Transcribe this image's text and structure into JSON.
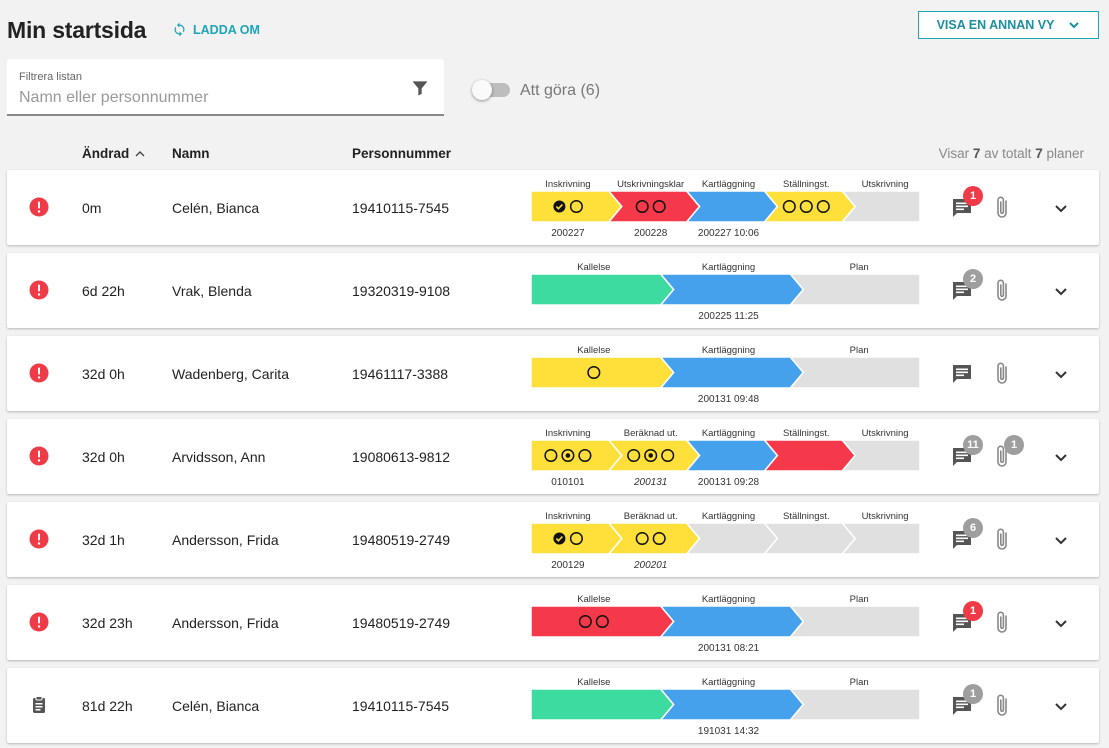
{
  "header": {
    "title": "Min startsida",
    "reload_label": "LADDA OM",
    "view_button_label": "VISA EN ANNAN VY"
  },
  "filter": {
    "label": "Filtrera listan",
    "placeholder": "Namn eller personnummer",
    "value": ""
  },
  "todo_toggle": {
    "label": "Att göra (6)",
    "checked": false
  },
  "table": {
    "columns": [
      "Ändrad",
      "Namn",
      "Personnummer"
    ],
    "sort_indicator": "^",
    "count_prefix": "Visar",
    "count_shown": "7",
    "count_mid": "av totalt",
    "count_total": "7",
    "count_suffix": "planer"
  },
  "colors": {
    "yellow": "#ffe03b",
    "red": "#f5394a",
    "blue": "#45a1ec",
    "green": "#3ddba0",
    "grey": "#e0e0e0",
    "teal": "#1aa6b7",
    "alert": "#ef3b47"
  },
  "rows": [
    {
      "status": "alert-icon",
      "changed": "0m",
      "name": "Celén, Bianca",
      "pnr": "19410115-7545",
      "steps": [
        {
          "label": "Inskrivning",
          "color": "yellow",
          "date": "200227",
          "italic": false,
          "circles": [
            "check",
            "empty"
          ]
        },
        {
          "label": "Utskrivningsklar",
          "color": "red",
          "date": "200228",
          "italic": false,
          "circles": [
            "empty",
            "empty"
          ]
        },
        {
          "label": "Kartläggning",
          "color": "blue",
          "date": "200227 10:06",
          "italic": false,
          "circles": []
        },
        {
          "label": "Ställningst.",
          "color": "yellow",
          "date": "",
          "italic": false,
          "circles": [
            "empty",
            "empty",
            "empty"
          ]
        },
        {
          "label": "Utskrivning",
          "color": "grey",
          "date": "",
          "italic": false,
          "circles": []
        }
      ],
      "comments": "1",
      "comment_badge": "red",
      "attachments": ""
    },
    {
      "status": "alert-icon",
      "changed": "6d 22h",
      "name": "Vrak, Blenda",
      "pnr": "19320319-9108",
      "steps": [
        {
          "label": "Kallelse",
          "color": "green",
          "date": "",
          "italic": false,
          "circles": []
        },
        {
          "label": "Kartläggning",
          "color": "blue",
          "date": "200225 11:25",
          "italic": false,
          "circles": []
        },
        {
          "label": "Plan",
          "color": "grey",
          "date": "",
          "italic": false,
          "circles": []
        }
      ],
      "comments": "2",
      "comment_badge": "grey",
      "attachments": ""
    },
    {
      "status": "alert-icon",
      "changed": "32d 0h",
      "name": "Wadenberg, Carita",
      "pnr": "19461117-3388",
      "steps": [
        {
          "label": "Kallelse",
          "color": "yellow",
          "date": "",
          "italic": false,
          "circles": [
            "empty"
          ]
        },
        {
          "label": "Kartläggning",
          "color": "blue",
          "date": "200131 09:48",
          "italic": false,
          "circles": []
        },
        {
          "label": "Plan",
          "color": "grey",
          "date": "",
          "italic": false,
          "circles": []
        }
      ],
      "comments": "",
      "comment_badge": "grey",
      "attachments": ""
    },
    {
      "status": "alert-icon",
      "changed": "32d 0h",
      "name": "Arvidsson, Ann",
      "pnr": "19080613-9812",
      "steps": [
        {
          "label": "Inskrivning",
          "color": "yellow",
          "date": "010101",
          "italic": false,
          "circles": [
            "empty",
            "dot",
            "empty"
          ]
        },
        {
          "label": "Beräknad ut.",
          "color": "yellow",
          "date": "200131",
          "italic": true,
          "circles": [
            "empty",
            "dot",
            "empty"
          ]
        },
        {
          "label": "Kartläggning",
          "color": "blue",
          "date": "200131 09:28",
          "italic": false,
          "circles": []
        },
        {
          "label": "Ställningst.",
          "color": "red",
          "date": "",
          "italic": false,
          "circles": []
        },
        {
          "label": "Utskrivning",
          "color": "grey",
          "date": "",
          "italic": false,
          "circles": []
        }
      ],
      "comments": "11",
      "comment_badge": "grey",
      "attachments": "1"
    },
    {
      "status": "alert-icon",
      "changed": "32d 1h",
      "name": "Andersson, Frida",
      "pnr": "19480519-2749",
      "steps": [
        {
          "label": "Inskrivning",
          "color": "yellow",
          "date": "200129",
          "italic": false,
          "circles": [
            "check",
            "empty"
          ]
        },
        {
          "label": "Beräknad ut.",
          "color": "yellow",
          "date": "200201",
          "italic": true,
          "circles": [
            "empty",
            "empty"
          ]
        },
        {
          "label": "Kartläggning",
          "color": "grey",
          "date": "",
          "italic": false,
          "circles": []
        },
        {
          "label": "Ställningst.",
          "color": "grey",
          "date": "",
          "italic": false,
          "circles": []
        },
        {
          "label": "Utskrivning",
          "color": "grey",
          "date": "",
          "italic": false,
          "circles": []
        }
      ],
      "comments": "6",
      "comment_badge": "grey",
      "attachments": ""
    },
    {
      "status": "alert-icon",
      "changed": "32d 23h",
      "name": "Andersson, Frida",
      "pnr": "19480519-2749",
      "steps": [
        {
          "label": "Kallelse",
          "color": "red",
          "date": "",
          "italic": false,
          "circles": [
            "empty",
            "empty"
          ]
        },
        {
          "label": "Kartläggning",
          "color": "blue",
          "date": "200131 08:21",
          "italic": false,
          "circles": []
        },
        {
          "label": "Plan",
          "color": "grey",
          "date": "",
          "italic": false,
          "circles": []
        }
      ],
      "comments": "1",
      "comment_badge": "red",
      "attachments": ""
    },
    {
      "status": "clipboard-icon",
      "changed": "81d 22h",
      "name": "Celén, Bianca",
      "pnr": "19410115-7545",
      "steps": [
        {
          "label": "Kallelse",
          "color": "green",
          "date": "",
          "italic": false,
          "circles": []
        },
        {
          "label": "Kartläggning",
          "color": "blue",
          "date": "191031 14:32",
          "italic": false,
          "circles": []
        },
        {
          "label": "Plan",
          "color": "grey",
          "date": "",
          "italic": false,
          "circles": []
        }
      ],
      "comments": "1",
      "comment_badge": "grey",
      "attachments": ""
    }
  ]
}
